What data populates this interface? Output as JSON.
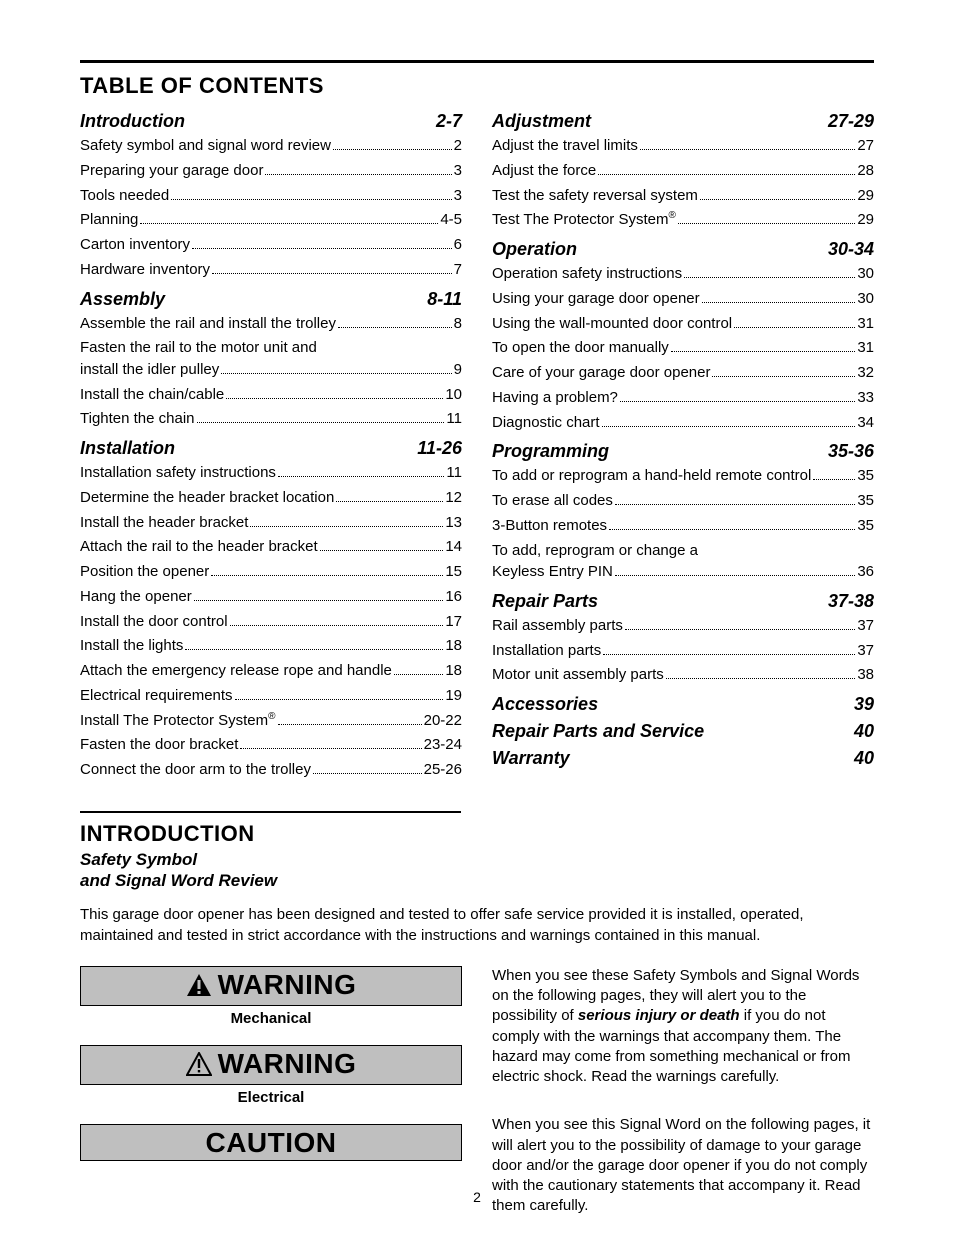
{
  "page_number": "2",
  "toc_title": "TABLE OF CONTENTS",
  "intro_title": "INTRODUCTION",
  "intro_sub_line1": "Safety Symbol",
  "intro_sub_line2": "and Signal Word Review",
  "intro_paragraph": "This garage door opener has been designed and tested to offer safe service provided it is installed, operated, maintained and tested in strict accordance with the instructions and warnings contained in this manual.",
  "colors": {
    "warning_bg": "#bfbfbf",
    "text": "#000000",
    "background": "#ffffff"
  },
  "warn": {
    "warning_word": "WARNING",
    "caution_word": "CAUTION",
    "mechanical_label": "Mechanical",
    "electrical_label": "Electrical",
    "para1_a": "When you see these Safety Symbols and Signal Words on the following pages, they will alert you to the possibility of ",
    "para1_bold": "serious injury or death",
    "para1_b": " if you do not comply with the warnings that accompany them. The hazard may come from something mechanical or from electric shock. Read the warnings carefully.",
    "para2": "When you see this Signal Word on the following pages, it will alert you to the possibility of damage to your garage door and/or the garage door opener if you do not comply with the cautionary statements that accompany it. Read them carefully."
  },
  "sections": {
    "left": [
      {
        "title": "Introduction",
        "pages": "2-7",
        "items": [
          {
            "label": "Safety symbol and signal word review",
            "page": "2"
          },
          {
            "label": "Preparing your garage door",
            "page": "3"
          },
          {
            "label": "Tools needed",
            "page": "3"
          },
          {
            "label": "Planning",
            "page": "4-5"
          },
          {
            "label": "Carton inventory",
            "page": "6"
          },
          {
            "label": "Hardware inventory",
            "page": "7"
          }
        ]
      },
      {
        "title": "Assembly",
        "pages": "8-11",
        "items": [
          {
            "label": "Assemble the rail and install the trolley",
            "page": "8"
          },
          {
            "label": "Fasten the rail to the motor unit and install the idler pulley",
            "page": "9",
            "multiline": true
          },
          {
            "label": "Install the chain/cable",
            "page": "10"
          },
          {
            "label": "Tighten the chain",
            "page": "11"
          }
        ]
      },
      {
        "title": "Installation",
        "pages": "11-26",
        "items": [
          {
            "label": "Installation safety instructions",
            "page": "11"
          },
          {
            "label": "Determine the header bracket location",
            "page": "12"
          },
          {
            "label": "Install the header bracket",
            "page": "13"
          },
          {
            "label": "Attach the rail to the header bracket",
            "page": "14"
          },
          {
            "label": "Position the opener",
            "page": "15"
          },
          {
            "label": "Hang the opener",
            "page": "16"
          },
          {
            "label": "Install the door control",
            "page": "17"
          },
          {
            "label": "Install the lights",
            "page": "18"
          },
          {
            "label": "Attach the emergency release rope and handle",
            "page": "18"
          },
          {
            "label": "Electrical requirements",
            "page": "19"
          },
          {
            "label": "Install The Protector System",
            "sup": "®",
            "page": "20-22"
          },
          {
            "label": "Fasten the door bracket",
            "page": "23-24"
          },
          {
            "label": "Connect the door arm to the trolley",
            "page": "25-26"
          }
        ]
      }
    ],
    "right": [
      {
        "title": "Adjustment",
        "pages": "27-29",
        "items": [
          {
            "label": "Adjust the travel limits",
            "page": "27"
          },
          {
            "label": "Adjust the force",
            "page": "28"
          },
          {
            "label": "Test the safety reversal system",
            "page": "29"
          },
          {
            "label": "Test The Protector System",
            "sup": "®",
            "page": "29"
          }
        ]
      },
      {
        "title": "Operation",
        "pages": "30-34",
        "items": [
          {
            "label": "Operation safety instructions",
            "page": "30"
          },
          {
            "label": "Using your garage door opener",
            "page": "30"
          },
          {
            "label": "Using the wall-mounted door control",
            "page": "31"
          },
          {
            "label": "To open the door manually",
            "page": "31"
          },
          {
            "label": "Care of your garage door opener",
            "page": "32"
          },
          {
            "label": "Having a problem?",
            "page": "33"
          },
          {
            "label": "Diagnostic chart",
            "page": "34"
          }
        ]
      },
      {
        "title": "Programming",
        "pages": "35-36",
        "items": [
          {
            "label": "To add or reprogram a hand-held remote control",
            "page": "35"
          },
          {
            "label": "To erase all codes",
            "page": "35"
          },
          {
            "label": "3-Button remotes",
            "page": "35"
          },
          {
            "label": "To add, reprogram or change a Keyless Entry PIN",
            "page": "36",
            "multiline": true
          }
        ]
      },
      {
        "title": "Repair Parts",
        "pages": "37-38",
        "items": [
          {
            "label": "Rail assembly parts",
            "page": "37"
          },
          {
            "label": "Installation parts",
            "page": "37"
          },
          {
            "label": "Motor unit assembly parts",
            "page": "38"
          }
        ]
      },
      {
        "title": "Accessories",
        "pages": "39",
        "items": []
      },
      {
        "title": "Repair Parts and Service",
        "pages": "40",
        "items": []
      },
      {
        "title": "Warranty",
        "pages": "40",
        "items": []
      }
    ]
  }
}
